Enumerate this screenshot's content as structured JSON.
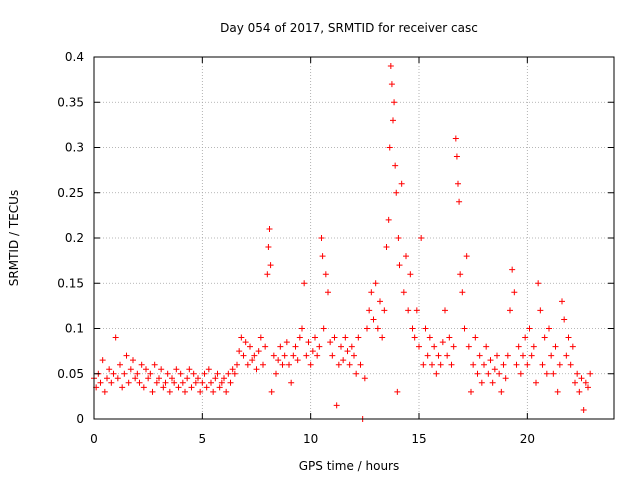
{
  "chart_data": {
    "type": "scatter",
    "title": "Day 054 of 2017, SRMTID for receiver casc",
    "xlabel": "GPS time / hours",
    "ylabel": "SRMTID / TECUs",
    "xlim": [
      0,
      24
    ],
    "ylim": [
      0,
      0.4
    ],
    "x_ticks": [
      0,
      5,
      10,
      15,
      20
    ],
    "x_tick_labels": [
      "0",
      "5",
      "10",
      "15",
      "20"
    ],
    "y_ticks": [
      0,
      0.05,
      0.1,
      0.15,
      0.2,
      0.25,
      0.3,
      0.35,
      0.4
    ],
    "y_tick_labels": [
      "0",
      "0.05",
      "0.1",
      "0.15",
      "0.2",
      "0.25",
      "0.3",
      "0.35",
      "0.4"
    ],
    "grid": true,
    "marker": "+",
    "color": "#ff0000",
    "series": [
      {
        "name": "SRMTID",
        "points": [
          [
            0.0,
            0.045
          ],
          [
            0.1,
            0.035
          ],
          [
            0.2,
            0.05
          ],
          [
            0.3,
            0.04
          ],
          [
            0.4,
            0.065
          ],
          [
            0.5,
            0.03
          ],
          [
            0.6,
            0.045
          ],
          [
            0.7,
            0.055
          ],
          [
            0.8,
            0.04
          ],
          [
            0.9,
            0.05
          ],
          [
            1.0,
            0.09
          ],
          [
            1.1,
            0.045
          ],
          [
            1.2,
            0.06
          ],
          [
            1.3,
            0.035
          ],
          [
            1.4,
            0.05
          ],
          [
            1.5,
            0.07
          ],
          [
            1.6,
            0.04
          ],
          [
            1.7,
            0.055
          ],
          [
            1.8,
            0.065
          ],
          [
            1.9,
            0.045
          ],
          [
            2.0,
            0.05
          ],
          [
            2.1,
            0.04
          ],
          [
            2.2,
            0.06
          ],
          [
            2.3,
            0.035
          ],
          [
            2.4,
            0.055
          ],
          [
            2.5,
            0.045
          ],
          [
            2.6,
            0.05
          ],
          [
            2.7,
            0.03
          ],
          [
            2.8,
            0.06
          ],
          [
            2.9,
            0.04
          ],
          [
            3.0,
            0.045
          ],
          [
            3.1,
            0.055
          ],
          [
            3.2,
            0.035
          ],
          [
            3.3,
            0.04
          ],
          [
            3.4,
            0.05
          ],
          [
            3.5,
            0.03
          ],
          [
            3.6,
            0.045
          ],
          [
            3.7,
            0.04
          ],
          [
            3.8,
            0.055
          ],
          [
            3.9,
            0.035
          ],
          [
            4.0,
            0.05
          ],
          [
            4.1,
            0.04
          ],
          [
            4.2,
            0.03
          ],
          [
            4.3,
            0.045
          ],
          [
            4.4,
            0.055
          ],
          [
            4.5,
            0.035
          ],
          [
            4.6,
            0.05
          ],
          [
            4.7,
            0.04
          ],
          [
            4.8,
            0.045
          ],
          [
            4.9,
            0.03
          ],
          [
            5.0,
            0.04
          ],
          [
            5.1,
            0.05
          ],
          [
            5.2,
            0.035
          ],
          [
            5.3,
            0.055
          ],
          [
            5.4,
            0.04
          ],
          [
            5.5,
            0.03
          ],
          [
            5.6,
            0.045
          ],
          [
            5.7,
            0.05
          ],
          [
            5.8,
            0.035
          ],
          [
            5.9,
            0.04
          ],
          [
            6.0,
            0.045
          ],
          [
            6.1,
            0.03
          ],
          [
            6.2,
            0.05
          ],
          [
            6.3,
            0.04
          ],
          [
            6.4,
            0.055
          ],
          [
            6.5,
            0.05
          ],
          [
            6.6,
            0.06
          ],
          [
            6.7,
            0.075
          ],
          [
            6.8,
            0.09
          ],
          [
            6.9,
            0.07
          ],
          [
            7.0,
            0.085
          ],
          [
            7.1,
            0.06
          ],
          [
            7.2,
            0.08
          ],
          [
            7.3,
            0.065
          ],
          [
            7.4,
            0.07
          ],
          [
            7.5,
            0.055
          ],
          [
            7.6,
            0.075
          ],
          [
            7.7,
            0.09
          ],
          [
            7.8,
            0.06
          ],
          [
            7.9,
            0.08
          ],
          [
            8.0,
            0.16
          ],
          [
            8.05,
            0.19
          ],
          [
            8.1,
            0.21
          ],
          [
            8.15,
            0.17
          ],
          [
            8.2,
            0.03
          ],
          [
            8.3,
            0.07
          ],
          [
            8.4,
            0.05
          ],
          [
            8.5,
            0.065
          ],
          [
            8.6,
            0.08
          ],
          [
            8.7,
            0.06
          ],
          [
            8.8,
            0.07
          ],
          [
            8.9,
            0.085
          ],
          [
            9.0,
            0.06
          ],
          [
            9.1,
            0.04
          ],
          [
            9.2,
            0.07
          ],
          [
            9.3,
            0.08
          ],
          [
            9.4,
            0.065
          ],
          [
            9.5,
            0.09
          ],
          [
            9.6,
            0.1
          ],
          [
            9.7,
            0.15
          ],
          [
            9.8,
            0.07
          ],
          [
            9.9,
            0.085
          ],
          [
            10.0,
            0.06
          ],
          [
            10.1,
            0.075
          ],
          [
            10.2,
            0.09
          ],
          [
            10.3,
            0.07
          ],
          [
            10.4,
            0.08
          ],
          [
            10.5,
            0.2
          ],
          [
            10.55,
            0.18
          ],
          [
            10.6,
            0.1
          ],
          [
            10.7,
            0.16
          ],
          [
            10.8,
            0.14
          ],
          [
            10.9,
            0.085
          ],
          [
            11.0,
            0.07
          ],
          [
            11.1,
            0.09
          ],
          [
            11.2,
            0.015
          ],
          [
            11.3,
            0.06
          ],
          [
            11.4,
            0.08
          ],
          [
            11.5,
            0.065
          ],
          [
            11.6,
            0.09
          ],
          [
            11.7,
            0.075
          ],
          [
            11.8,
            0.06
          ],
          [
            11.9,
            0.08
          ],
          [
            12.0,
            0.07
          ],
          [
            12.1,
            0.05
          ],
          [
            12.2,
            0.09
          ],
          [
            12.3,
            0.06
          ],
          [
            12.4,
            0.0
          ],
          [
            12.5,
            0.045
          ],
          [
            12.6,
            0.1
          ],
          [
            12.7,
            0.12
          ],
          [
            12.8,
            0.14
          ],
          [
            12.9,
            0.11
          ],
          [
            13.0,
            0.15
          ],
          [
            13.1,
            0.1
          ],
          [
            13.2,
            0.13
          ],
          [
            13.3,
            0.09
          ],
          [
            13.4,
            0.12
          ],
          [
            13.5,
            0.19
          ],
          [
            13.6,
            0.22
          ],
          [
            13.65,
            0.3
          ],
          [
            13.7,
            0.39
          ],
          [
            13.75,
            0.37
          ],
          [
            13.8,
            0.33
          ],
          [
            13.85,
            0.35
          ],
          [
            13.9,
            0.28
          ],
          [
            13.95,
            0.25
          ],
          [
            14.0,
            0.03
          ],
          [
            14.05,
            0.2
          ],
          [
            14.1,
            0.17
          ],
          [
            14.2,
            0.26
          ],
          [
            14.3,
            0.14
          ],
          [
            14.4,
            0.18
          ],
          [
            14.5,
            0.12
          ],
          [
            14.6,
            0.16
          ],
          [
            14.7,
            0.1
          ],
          [
            14.8,
            0.09
          ],
          [
            14.9,
            0.12
          ],
          [
            15.0,
            0.08
          ],
          [
            15.1,
            0.2
          ],
          [
            15.2,
            0.06
          ],
          [
            15.3,
            0.1
          ],
          [
            15.4,
            0.07
          ],
          [
            15.5,
            0.09
          ],
          [
            15.6,
            0.06
          ],
          [
            15.7,
            0.08
          ],
          [
            15.8,
            0.05
          ],
          [
            15.9,
            0.07
          ],
          [
            16.0,
            0.06
          ],
          [
            16.1,
            0.085
          ],
          [
            16.2,
            0.12
          ],
          [
            16.3,
            0.07
          ],
          [
            16.4,
            0.09
          ],
          [
            16.5,
            0.06
          ],
          [
            16.6,
            0.08
          ],
          [
            16.7,
            0.31
          ],
          [
            16.75,
            0.29
          ],
          [
            16.8,
            0.26
          ],
          [
            16.85,
            0.24
          ],
          [
            16.9,
            0.16
          ],
          [
            17.0,
            0.14
          ],
          [
            17.1,
            0.1
          ],
          [
            17.2,
            0.18
          ],
          [
            17.3,
            0.08
          ],
          [
            17.4,
            0.03
          ],
          [
            17.5,
            0.06
          ],
          [
            17.6,
            0.09
          ],
          [
            17.7,
            0.05
          ],
          [
            17.8,
            0.07
          ],
          [
            17.9,
            0.04
          ],
          [
            18.0,
            0.06
          ],
          [
            18.1,
            0.08
          ],
          [
            18.2,
            0.05
          ],
          [
            18.3,
            0.065
          ],
          [
            18.4,
            0.04
          ],
          [
            18.5,
            0.055
          ],
          [
            18.6,
            0.07
          ],
          [
            18.7,
            0.05
          ],
          [
            18.8,
            0.03
          ],
          [
            18.9,
            0.06
          ],
          [
            19.0,
            0.045
          ],
          [
            19.1,
            0.07
          ],
          [
            19.2,
            0.12
          ],
          [
            19.3,
            0.165
          ],
          [
            19.4,
            0.14
          ],
          [
            19.5,
            0.06
          ],
          [
            19.6,
            0.08
          ],
          [
            19.7,
            0.05
          ],
          [
            19.8,
            0.07
          ],
          [
            19.9,
            0.09
          ],
          [
            20.0,
            0.06
          ],
          [
            20.1,
            0.1
          ],
          [
            20.2,
            0.07
          ],
          [
            20.3,
            0.08
          ],
          [
            20.4,
            0.04
          ],
          [
            20.5,
            0.15
          ],
          [
            20.6,
            0.12
          ],
          [
            20.7,
            0.06
          ],
          [
            20.8,
            0.09
          ],
          [
            20.9,
            0.05
          ],
          [
            21.0,
            0.1
          ],
          [
            21.1,
            0.07
          ],
          [
            21.2,
            0.05
          ],
          [
            21.3,
            0.08
          ],
          [
            21.4,
            0.03
          ],
          [
            21.5,
            0.06
          ],
          [
            21.6,
            0.13
          ],
          [
            21.7,
            0.11
          ],
          [
            21.8,
            0.07
          ],
          [
            21.9,
            0.09
          ],
          [
            22.0,
            0.06
          ],
          [
            22.1,
            0.08
          ],
          [
            22.2,
            0.04
          ],
          [
            22.3,
            0.05
          ],
          [
            22.4,
            0.03
          ],
          [
            22.5,
            0.045
          ],
          [
            22.6,
            0.01
          ],
          [
            22.7,
            0.04
          ],
          [
            22.8,
            0.035
          ],
          [
            22.9,
            0.05
          ]
        ]
      }
    ]
  }
}
